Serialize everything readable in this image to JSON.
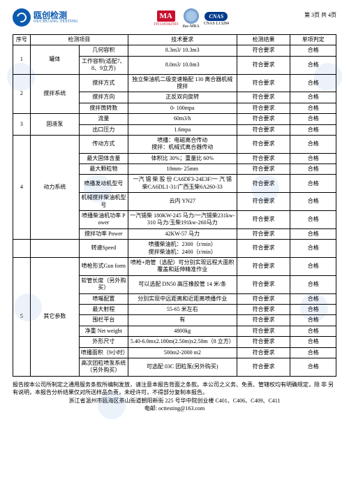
{
  "header": {
    "logo_cn": "瓯创检测",
    "logo_en": "OUCHUANG TESTING",
    "cma_label": "MA",
    "cma_code": "191110342593",
    "ilac_label": "ilac-MRA",
    "cnas_label": "CNAS",
    "cnas_code": "CNAS L13284",
    "page": "第 3页 共 4页"
  },
  "th": [
    "序号",
    "检测项目",
    "",
    "技术要求",
    "检测结果",
    "单项判定"
  ],
  "colw": [
    "22",
    "62",
    "62",
    "138",
    "68",
    "58"
  ],
  "rows": [
    {
      "no": "1",
      "g": "罐体",
      "gr": 2,
      "sub": "几何容积",
      "req": "8.3m3/ 10.3m3",
      "res": "符合要求",
      "v": "合格"
    },
    {
      "sub": "工作容积(适配7、8、9立方)",
      "req": "8.0m3/ 10.0m3",
      "res": "符合要求",
      "v": "合格"
    },
    {
      "no": "2",
      "g": "搅拌系统",
      "gr": 3,
      "sub": "搅拌方式",
      "req": "独立柴油机二级变速箱配 130 离合器机械搅拌",
      "res": "符合要求",
      "v": "合格"
    },
    {
      "sub": "搅拌方向",
      "req": "正反双向旋转",
      "res": "符合要求",
      "v": "合格"
    },
    {
      "sub": "搅拌筒转数",
      "req": "0- 100mpa",
      "res": "符合要求",
      "v": "合格"
    },
    {
      "no": "3",
      "g": "固液泵",
      "gr": 2,
      "sub": "流量",
      "req": "60m3/h",
      "res": "符合要求",
      "v": "合格"
    },
    {
      "sub": "出口压力",
      "req": "1.6mpa",
      "res": "符合要求",
      "v": "合格"
    },
    {
      "no": "4",
      "g": "动力系统",
      "gr": 7,
      "sub": "传动方式",
      "req": "喷播：电磁离合传动\n搅拌：机械式离合器传动",
      "res": "符合要求",
      "v": "合格"
    },
    {
      "sub": "最大固体含量",
      "req": "体积比 30%；重量比 60%",
      "res": "符合要求",
      "v": "合格"
    },
    {
      "sub": "最大颗粒物",
      "req": "10mm- 25mm",
      "res": "符合要求",
      "v": "合格"
    },
    {
      "sub": "喷播发动机型号",
      "req": "一汽 锡 柴 股 份 CA6DF3-24E3F/一 汽 锡 柴CA6DL1-31/广西玉柴6A260-33",
      "res": "符合要求",
      "v": "合格"
    },
    {
      "sub": "机械搅拌柴油机型号",
      "req": "云内 YN27",
      "res": "符合要求",
      "v": "合格"
    },
    {
      "sub": "喷播柴油机功率 Power",
      "req": "一汽锡柴 180KW-245 马力/一汽锡柴231kw-310 马力/玉柴191kw-260马力",
      "res": "符合要求",
      "v": "合格"
    },
    {
      "sub": "搅拌功率 Power",
      "req": "42KW-57 马力",
      "res": "符合要求",
      "v": "合格"
    },
    {
      "no": "",
      "g": "",
      "gr": 0,
      "sub": "转速Speed",
      "req": "喷播柴油机：2300（r/min）\n搅拌柴油机：2400（r/min）",
      "res": "符合要求",
      "v": "合格",
      "extra": true
    },
    {
      "no": "5",
      "g": "其它参数",
      "gr": 9,
      "sub": "喷枪形式Gun form",
      "req": "喷枪+炮管（选配）可分别实现远程大面积覆盖和延伸精准作业",
      "res": "符合要求",
      "v": "合格"
    },
    {
      "sub": "软管长度（另外购买）",
      "req": "可以选配 DN50 高压橡胶管 14 米/条",
      "res": "符合要求",
      "v": "合格"
    },
    {
      "sub": "喷嘴配置",
      "req": "分别实现中远距离和近距离喷播作业",
      "res": "符合要求",
      "v": "合格"
    },
    {
      "sub": "最大射程",
      "req": "55-65 米左右",
      "res": "符合要求",
      "v": "合格"
    },
    {
      "sub": "围栏平台",
      "req": "有",
      "res": "符合要求",
      "v": "合格"
    },
    {
      "sub": "净重 Net weight",
      "req": "4800kg",
      "res": "符合要求",
      "v": "合格"
    },
    {
      "sub": "外形尺寸",
      "req": "5.40-6.0mx2.180m(2.50m)x2.50m（8 立方）",
      "res": "符合要求",
      "v": "合格"
    },
    {
      "sub": "喷播面积（9小时）",
      "req": "500m2-2000 m2",
      "res": "符合要求",
      "v": "合格"
    },
    {
      "sub": "高次团粒喷泵系统（另外购买）",
      "req": "可选配 03C 团粒泵(另外购买)",
      "res": "符合要求",
      "v": "合格"
    }
  ],
  "footer": {
    "p1": "报告按本公司所制定之通用服务条款所编制发放，请注意本报告背面之条款。本公司之义务、免责、管辖权均有明确规定，除 非 另",
    "p2": "有说明，本报告分析结果仅对所送样品负责，未经许可，不得部分复制本报告。",
    "p3": "浙江省温州市瓯海区茶山街道朝阳新街 225 号华中院创业楼 C401、C406、C409、C411",
    "p4": "电邮: octtesting@163.com"
  }
}
